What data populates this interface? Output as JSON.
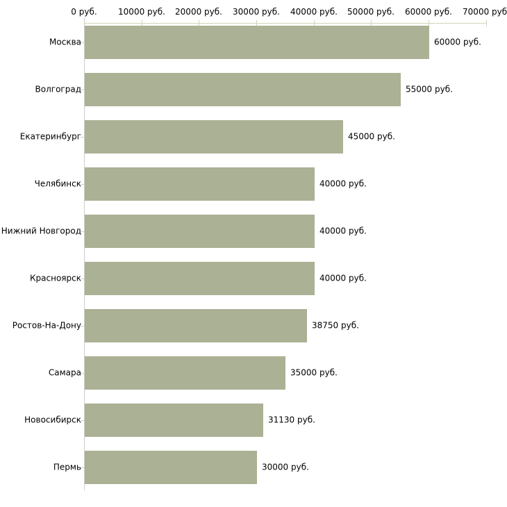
{
  "chart_data": {
    "type": "bar",
    "orientation": "horizontal",
    "title": "",
    "xlabel": "",
    "ylabel": "",
    "categories": [
      "Москва",
      "Волгоград",
      "Екатеринбург",
      "Челябинск",
      "Нижний Новгород",
      "Красноярск",
      "Ростов-На-Дону",
      "Самара",
      "Новосибирск",
      "Пермь"
    ],
    "values": [
      60000,
      55000,
      45000,
      40000,
      40000,
      40000,
      38750,
      35000,
      31130,
      30000
    ],
    "bar_value_labels": [
      "60000 руб.",
      "55000 руб.",
      "45000 руб.",
      "40000 руб.",
      "40000 руб.",
      "40000 руб.",
      "38750 руб.",
      "35000 руб.",
      "31130 руб.",
      "30000 руб."
    ],
    "x_ticks": [
      0,
      10000,
      20000,
      30000,
      40000,
      50000,
      60000,
      70000
    ],
    "x_tick_labels": [
      "0 руб.",
      "10000 руб.",
      "20000 руб.",
      "30000 руб.",
      "40000 руб.",
      "50000 руб.",
      "60000 руб.",
      "70000 руб."
    ],
    "xlim": [
      0,
      70000
    ],
    "grid": false,
    "legend": false,
    "colors": {
      "bar_fill": "#abb194",
      "x_axis_line": "#d5d2b8",
      "x_tick_mark": "#d5d2b8",
      "y_axis_line": "#cccccc",
      "y_tick_mark": "#d5d2b8",
      "text": "#000000",
      "background": "#ffffff"
    }
  }
}
